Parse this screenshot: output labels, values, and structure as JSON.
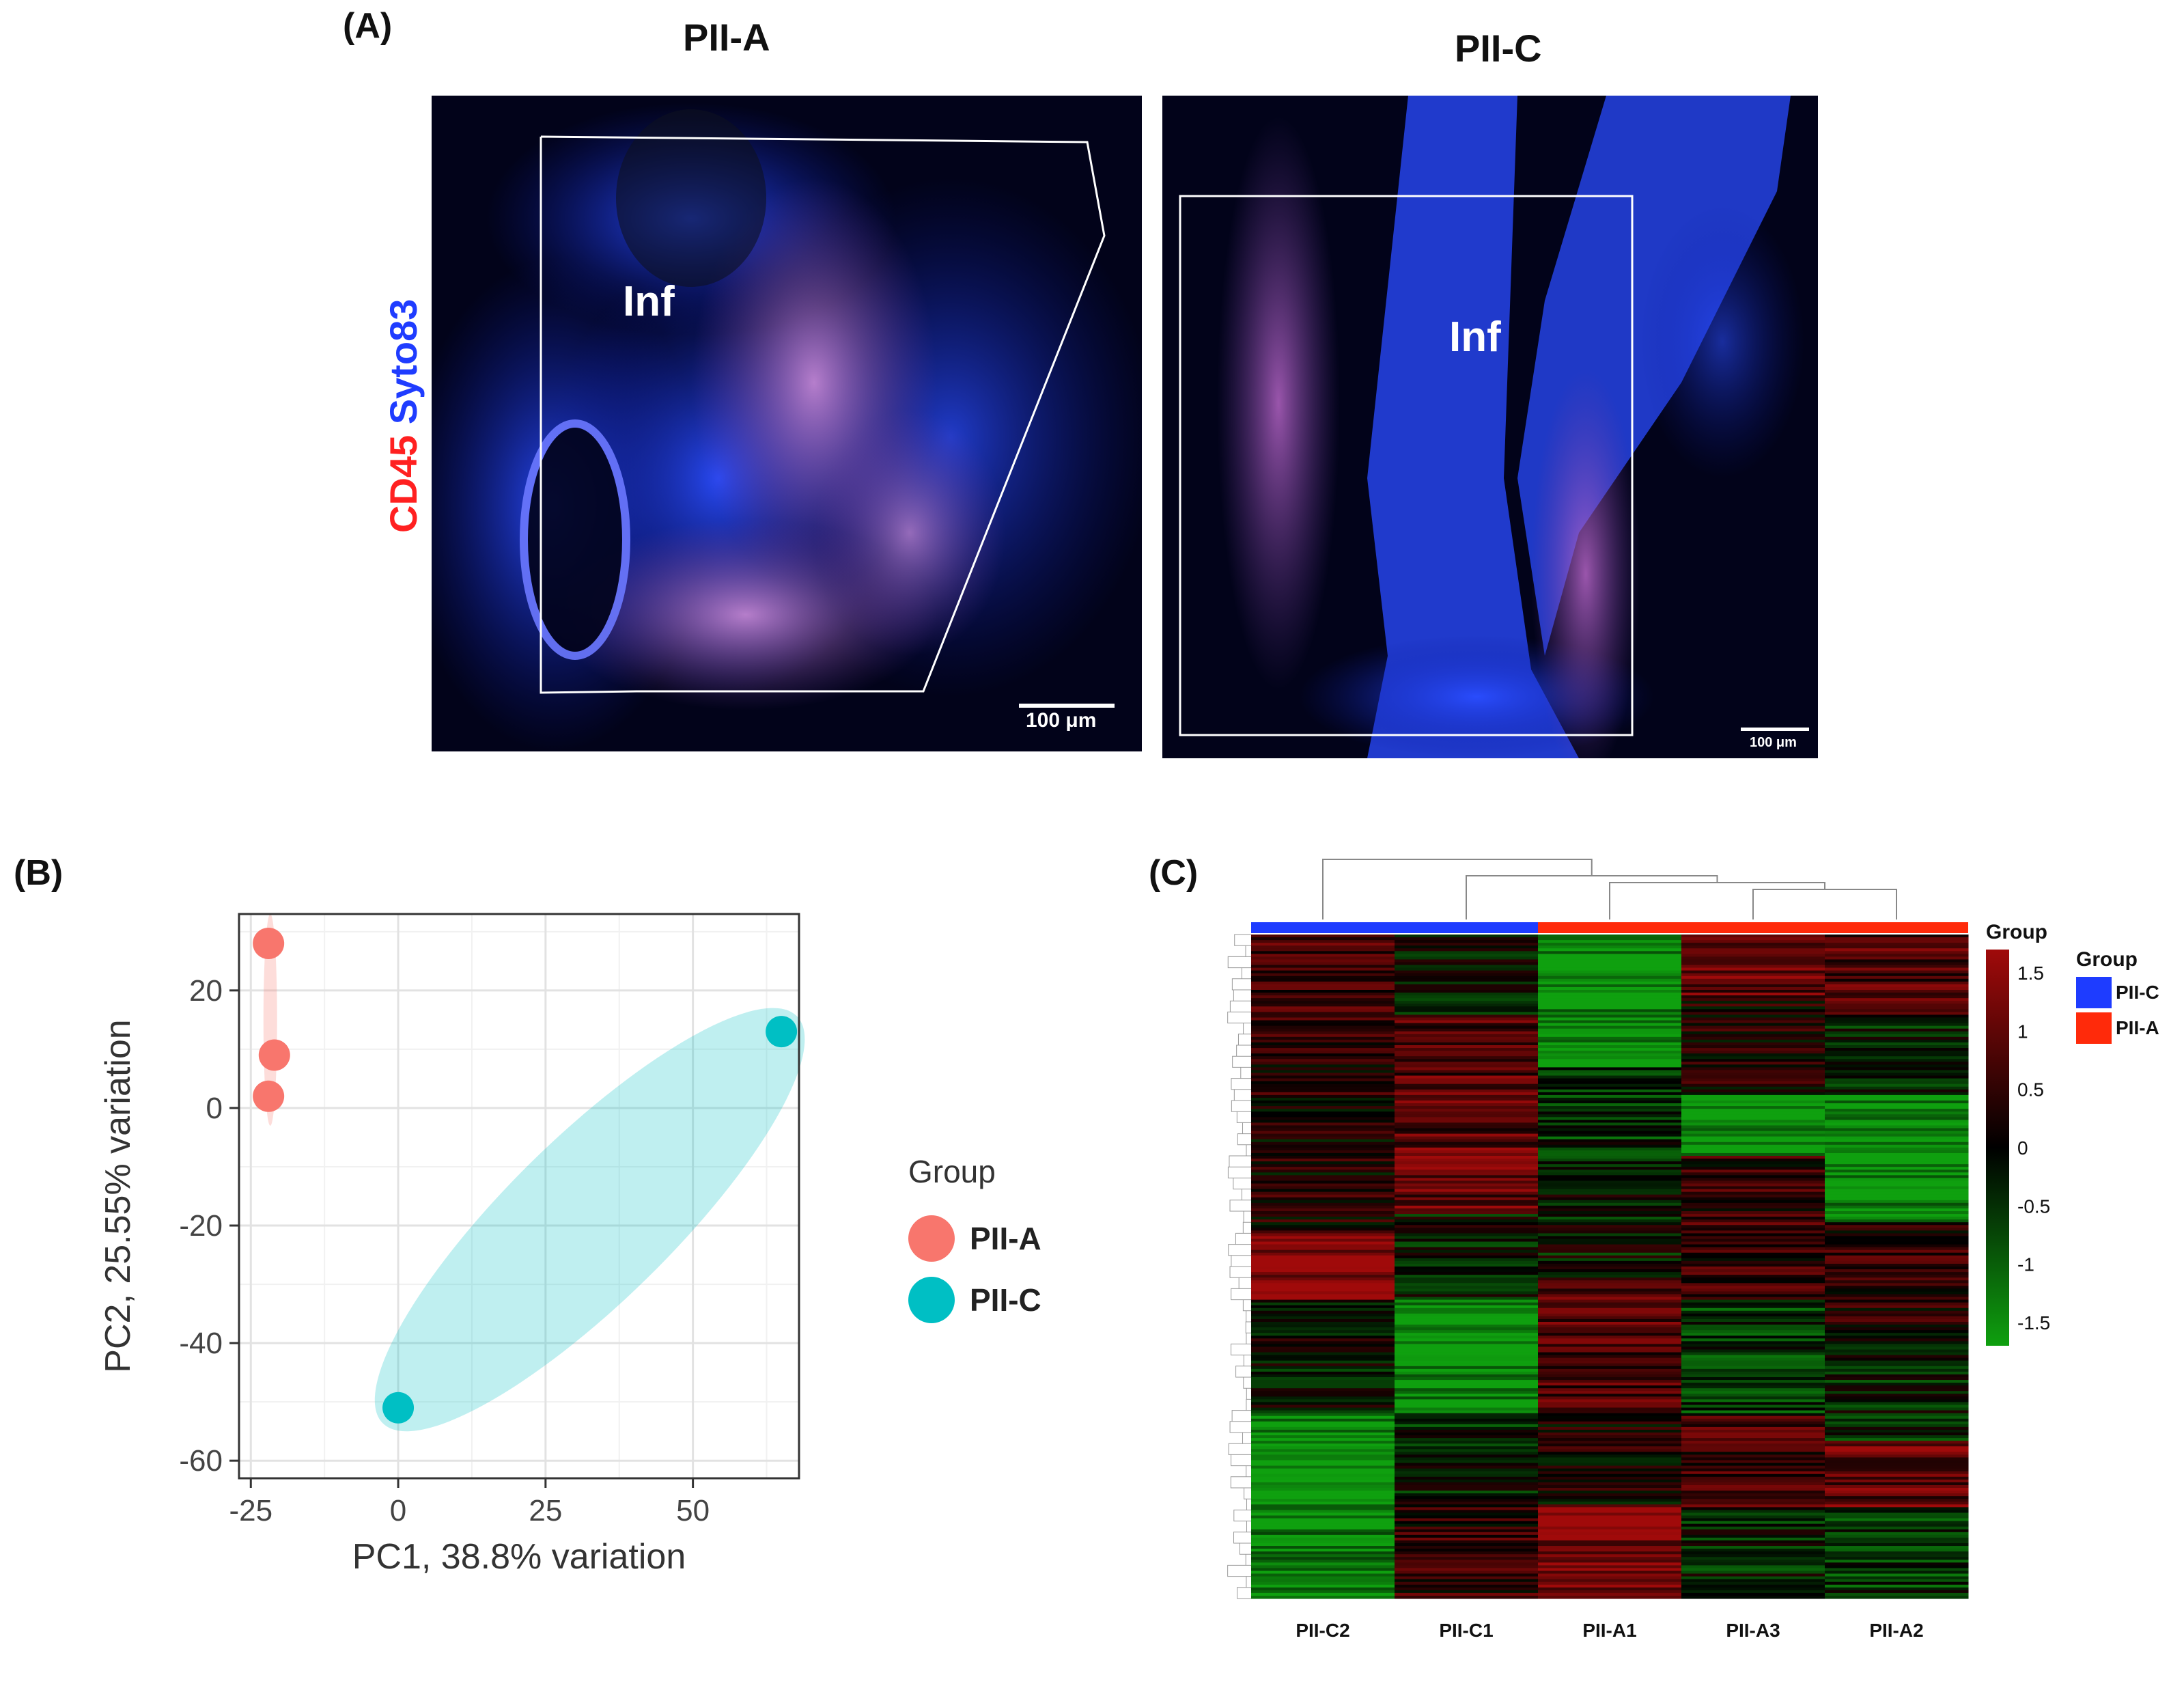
{
  "panel_a": {
    "label": "(A)",
    "left_title": "PII-A",
    "right_title": "PII-C",
    "stain_red": "CD45",
    "stain_blue": "Syto83",
    "left_region": "Inf",
    "right_region": "Inf",
    "left_scale": "100 μm",
    "right_scale": "100 μm"
  },
  "panel_b": {
    "label": "(B)",
    "legend_title": "Group",
    "legend": [
      {
        "label": "PII-A",
        "color": "#F8766D"
      },
      {
        "label": "PII-C",
        "color": "#00BFC4"
      }
    ]
  },
  "panel_c": {
    "label": "(C)",
    "legend_title": "Group",
    "group_bar_title": "Group",
    "legend": [
      {
        "label": "PII-C",
        "color": "#1E3CFF"
      },
      {
        "label": "PII-A",
        "color": "#FF2A0A"
      }
    ]
  },
  "chart_data": [
    {
      "type": "scatter",
      "xlabel": "PC1, 38.8% variation",
      "ylabel": "PC2, 25.55% variation",
      "xlim": [
        -27,
        68
      ],
      "ylim": [
        -63,
        33
      ],
      "xticks": [
        -25,
        0,
        25,
        50
      ],
      "yticks": [
        20,
        0,
        -20,
        -40,
        -60
      ],
      "grid": true,
      "legend_position": "right",
      "series": [
        {
          "name": "PII-A",
          "color": "#F8766D",
          "x": [
            -22,
            -21,
            -22
          ],
          "y": [
            28,
            9,
            2
          ]
        },
        {
          "name": "PII-C",
          "color": "#00BFC4",
          "x": [
            0,
            65
          ],
          "y": [
            -51,
            13
          ]
        }
      ]
    },
    {
      "type": "heatmap",
      "columns": [
        "PII-C2",
        "PII-C1",
        "PII-A1",
        "PII-A3",
        "PII-A2"
      ],
      "column_groups": [
        "PII-C",
        "PII-C",
        "PII-A",
        "PII-A",
        "PII-A"
      ],
      "colorbar_ticks": [
        "1.5",
        "1",
        "0.5",
        "0",
        "-0.5",
        "-1",
        "-1.5"
      ],
      "colorbar_range": [
        -1.7,
        1.7
      ],
      "colors": {
        "low": "#0FA00F",
        "mid": "#000000",
        "high": "#A00A0A"
      }
    }
  ]
}
